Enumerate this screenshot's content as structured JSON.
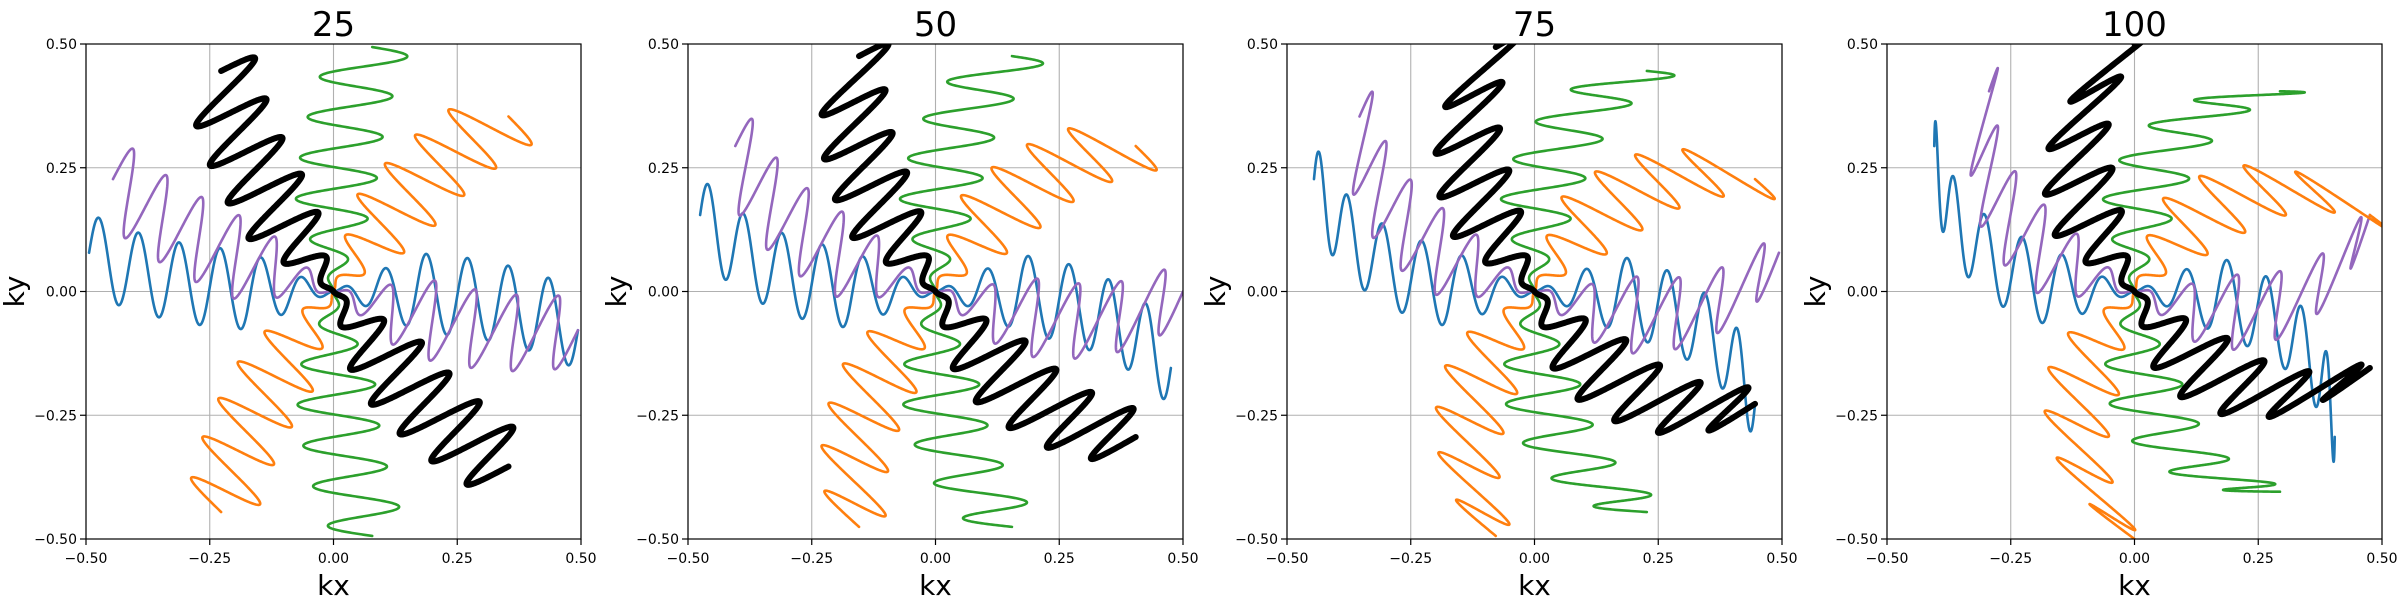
{
  "chart_data": [
    {
      "type": "line",
      "title": "25",
      "xlabel": "kx",
      "ylabel": "ky",
      "xlim": [
        -0.5,
        0.5
      ],
      "ylim": [
        -0.5,
        0.5
      ],
      "xticks": [
        "−0.50",
        "−0.25",
        "0.00",
        "0.25",
        "0.50"
      ],
      "yticks": [
        "−0.50",
        "−0.25",
        "0.00",
        "0.25",
        "0.50"
      ],
      "grid": true,
      "trajectories": {
        "spokes": 10,
        "angle_step_deg": 36,
        "k_max": 0.5,
        "oscillations": 6,
        "wiggle_amplitude": 0.08,
        "curvature": 25,
        "highlighted_spoke_angle_deg": 126
      },
      "series": [
        {
          "color": "#1f77b4",
          "angles_deg": [
            0,
            180
          ]
        },
        {
          "color": "#9467bd",
          "angles_deg": [
            162,
            342
          ]
        },
        {
          "color": "#ff7f0e",
          "angles_deg": [
            54,
            234
          ]
        },
        {
          "color": "#2ca02c",
          "angles_deg": [
            90,
            270
          ]
        },
        {
          "color": "#000000",
          "angles_deg": [
            126,
            306
          ],
          "line": "bold"
        }
      ]
    },
    {
      "type": "line",
      "title": "50",
      "xlabel": "kx",
      "ylabel": "ky",
      "xlim": [
        -0.5,
        0.5
      ],
      "ylim": [
        -0.5,
        0.5
      ],
      "xticks": [
        "−0.50",
        "−0.25",
        "0.00",
        "0.25",
        "0.50"
      ],
      "yticks": [
        "−0.50",
        "−0.25",
        "0.00",
        "0.25",
        "0.50"
      ],
      "grid": true,
      "trajectories": {
        "spokes": 10,
        "angle_step_deg": 36,
        "k_max": 0.5,
        "oscillations": 6,
        "wiggle_amplitude": 0.08,
        "curvature": 50,
        "highlighted_spoke_angle_deg": 126
      },
      "series": [
        {
          "color": "#1f77b4",
          "angles_deg": [
            0,
            180
          ]
        },
        {
          "color": "#9467bd",
          "angles_deg": [
            162,
            342
          ]
        },
        {
          "color": "#ff7f0e",
          "angles_deg": [
            54,
            234
          ]
        },
        {
          "color": "#2ca02c",
          "angles_deg": [
            90,
            270
          ]
        },
        {
          "color": "#000000",
          "angles_deg": [
            126,
            306
          ],
          "line": "bold"
        }
      ]
    },
    {
      "type": "line",
      "title": "75",
      "xlabel": "kx",
      "ylabel": "ky",
      "xlim": [
        -0.5,
        0.5
      ],
      "ylim": [
        -0.5,
        0.5
      ],
      "xticks": [
        "−0.50",
        "−0.25",
        "0.00",
        "0.25",
        "0.50"
      ],
      "yticks": [
        "−0.50",
        "−0.25",
        "0.00",
        "0.25",
        "0.50"
      ],
      "grid": true,
      "trajectories": {
        "spokes": 10,
        "angle_step_deg": 36,
        "k_max": 0.5,
        "oscillations": 6,
        "wiggle_amplitude": 0.08,
        "curvature": 75,
        "highlighted_spoke_angle_deg": 126
      },
      "series": [
        {
          "color": "#1f77b4",
          "angles_deg": [
            0,
            180
          ]
        },
        {
          "color": "#9467bd",
          "angles_deg": [
            162,
            342
          ]
        },
        {
          "color": "#ff7f0e",
          "angles_deg": [
            54,
            234
          ]
        },
        {
          "color": "#2ca02c",
          "angles_deg": [
            90,
            270
          ]
        },
        {
          "color": "#000000",
          "angles_deg": [
            126,
            306
          ],
          "line": "bold"
        }
      ]
    },
    {
      "type": "line",
      "title": "100",
      "xlabel": "kx",
      "ylabel": "ky",
      "xlim": [
        -0.5,
        0.5
      ],
      "ylim": [
        -0.5,
        0.5
      ],
      "xticks": [
        "−0.50",
        "−0.25",
        "0.00",
        "0.25",
        "0.50"
      ],
      "yticks": [
        "−0.50",
        "−0.25",
        "0.00",
        "0.25",
        "0.50"
      ],
      "grid": true,
      "trajectories": {
        "spokes": 10,
        "angle_step_deg": 36,
        "k_max": 0.5,
        "oscillations": 6,
        "wiggle_amplitude": 0.08,
        "curvature": 100,
        "highlighted_spoke_angle_deg": 126
      },
      "series": [
        {
          "color": "#1f77b4",
          "angles_deg": [
            0,
            180
          ]
        },
        {
          "color": "#9467bd",
          "angles_deg": [
            162,
            342
          ]
        },
        {
          "color": "#ff7f0e",
          "angles_deg": [
            54,
            234
          ]
        },
        {
          "color": "#2ca02c",
          "angles_deg": [
            90,
            270
          ]
        },
        {
          "color": "#000000",
          "angles_deg": [
            126,
            306
          ],
          "line": "bold"
        }
      ]
    }
  ]
}
